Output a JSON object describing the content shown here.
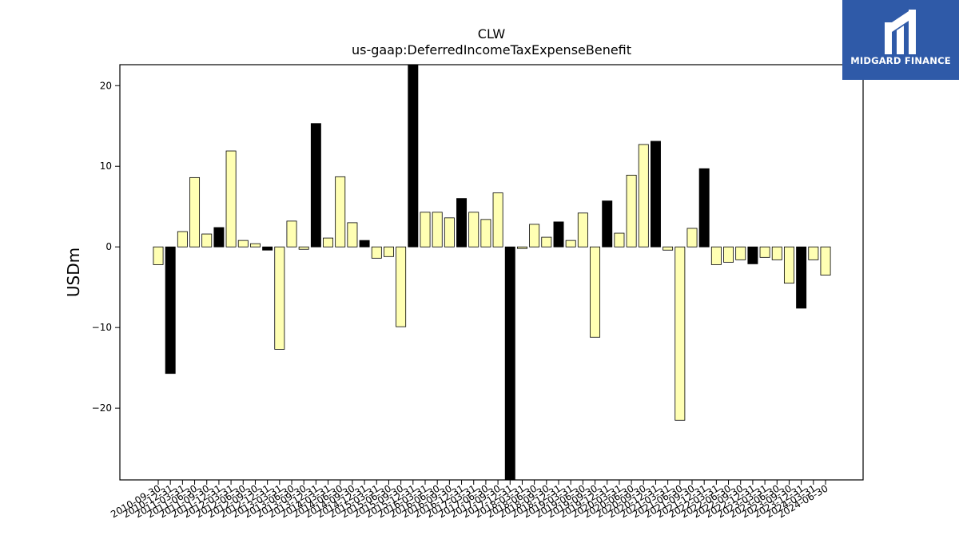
{
  "brand": {
    "name": "MIDGARD FINANCE",
    "logo_icon": "midgard-m-logo-icon",
    "bg_color": "#2f5aa8"
  },
  "chart_data": {
    "type": "bar",
    "title": "CLW",
    "subtitle": "us-gaap:DeferredIncomeTaxExpenseBenefit",
    "xlabel": "",
    "ylabel": "USDm",
    "ylim": [
      -28.9,
      22.6
    ],
    "yticks": [
      -20,
      -10,
      0,
      10,
      20
    ],
    "grid": false,
    "colors": {
      "quarter": "#ffffb3",
      "annual": "#000000"
    },
    "categories": [
      "2010-09-30",
      "2010-12-31",
      "2011-03-31",
      "2011-06-30",
      "2011-09-30",
      "2011-12-31",
      "2012-03-31",
      "2012-06-30",
      "2012-09-30",
      "2012-12-31",
      "2013-03-31",
      "2013-06-30",
      "2013-09-30",
      "2013-12-31",
      "2014-03-31",
      "2014-06-30",
      "2014-09-30",
      "2014-12-31",
      "2015-03-31",
      "2015-06-30",
      "2015-09-30",
      "2015-12-31",
      "2016-03-31",
      "2016-06-30",
      "2016-09-30",
      "2016-12-31",
      "2017-03-31",
      "2017-06-30",
      "2017-09-30",
      "2017-12-31",
      "2018-03-31",
      "2018-06-30",
      "2018-09-30",
      "2018-12-31",
      "2019-03-31",
      "2019-06-30",
      "2019-09-30",
      "2019-12-31",
      "2020-03-31",
      "2020-06-30",
      "2020-09-30",
      "2020-12-31",
      "2021-03-31",
      "2021-06-30",
      "2021-09-30",
      "2021-12-31",
      "2022-03-31",
      "2022-06-30",
      "2022-09-30",
      "2022-12-31",
      "2023-03-31",
      "2023-06-30",
      "2023-09-30",
      "2023-12-31",
      "2024-03-31",
      "2024-06-30"
    ],
    "series": [
      {
        "values": [
          -2.2,
          -15.7,
          1.9,
          8.6,
          1.6,
          2.4,
          11.9,
          0.8,
          0.4,
          -0.4,
          -12.7,
          3.2,
          -0.3,
          15.3,
          1.1,
          8.7,
          3.0,
          0.8,
          -1.4,
          -1.2,
          -9.9,
          22.6,
          4.3,
          4.3,
          3.6,
          6.0,
          4.3,
          3.4,
          6.7,
          -28.9,
          -0.2,
          2.8,
          1.2,
          3.1,
          0.8,
          4.2,
          -11.2,
          5.7,
          1.7,
          8.9,
          12.7,
          13.1,
          -0.4,
          -21.5,
          2.3,
          9.7,
          -2.2,
          -1.9,
          -1.6,
          -2.1,
          -1.3,
          -1.6,
          -4.5,
          -7.6,
          -1.6,
          -3.5
        ],
        "annual": [
          false,
          true,
          false,
          false,
          false,
          true,
          false,
          false,
          false,
          true,
          false,
          false,
          false,
          true,
          false,
          false,
          false,
          true,
          false,
          false,
          false,
          true,
          false,
          false,
          false,
          true,
          false,
          false,
          false,
          true,
          false,
          false,
          false,
          true,
          false,
          false,
          false,
          true,
          false,
          false,
          false,
          true,
          false,
          false,
          false,
          true,
          false,
          false,
          false,
          true,
          false,
          false,
          false,
          true,
          false,
          false
        ]
      }
    ]
  }
}
